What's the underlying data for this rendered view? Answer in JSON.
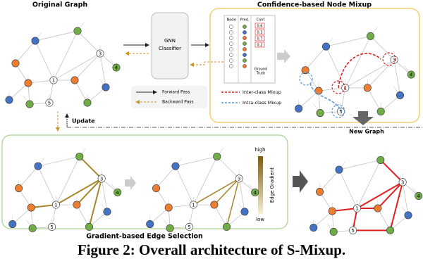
{
  "original_title": "Original Graph",
  "classifier": [
    "GNN",
    "Classifier"
  ],
  "mixup_title": "Confidence-based Node Mixup",
  "table": {
    "headers": [
      "Node",
      "Pred.",
      "Conf."
    ],
    "conf": [
      "0.6",
      "0.3",
      "0.7",
      "0.2"
    ],
    "ground_truth": [
      "Ground",
      "Truth"
    ]
  },
  "legend": {
    "forward": "Forward Pass",
    "backward": "Backward Pass",
    "inter": "Inter-class Mixup",
    "intra": "Intra-class Mixup"
  },
  "update": "Update",
  "new_graph": "New Graph",
  "gradient": {
    "high": "high",
    "low": "low",
    "label": "Edge Gradient"
  },
  "edge_title": "Gradient-based Edge Selection",
  "node_labels": [
    "1",
    "2",
    "3",
    "4",
    "5"
  ],
  "caption": "Figure 2: Overall architecture of S-Mixup."
}
